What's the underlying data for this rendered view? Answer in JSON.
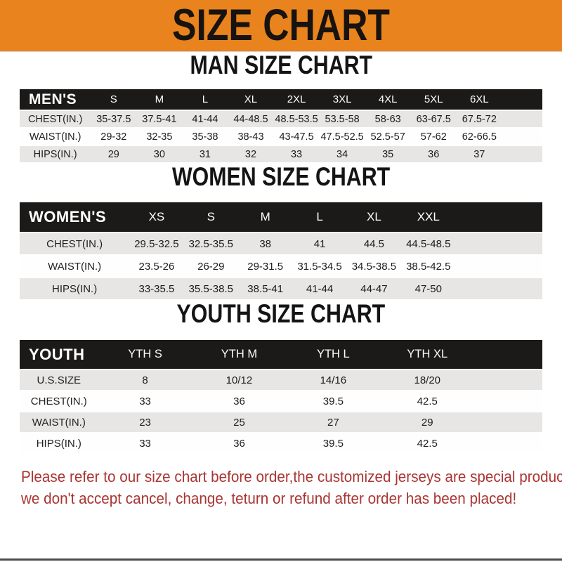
{
  "banner": {
    "title": "SIZE CHART"
  },
  "colors": {
    "banner_bg": "#e8831d",
    "bar_bg": "#1b1a18",
    "row_alt": "#e7e6e4",
    "note_red": "#a93532"
  },
  "men": {
    "heading": "MAN SIZE CHART",
    "table": {
      "group_label": "MEN'S",
      "columns": [
        "S",
        "M",
        "L",
        "XL",
        "2XL",
        "3XL",
        "4XL",
        "5XL",
        "6XL"
      ],
      "rows": [
        {
          "label": "CHEST(IN.)",
          "values": [
            "35-37.5",
            "37.5-41",
            "41-44",
            "44-48.5",
            "48.5-53.5",
            "53.5-58",
            "58-63",
            "63-67.5",
            "67.5-72"
          ]
        },
        {
          "label": "WAIST(IN.)",
          "values": [
            "29-32",
            "32-35",
            "35-38",
            "38-43",
            "43-47.5",
            "47.5-52.5",
            "52.5-57",
            "57-62",
            "62-66.5"
          ]
        },
        {
          "label": "HIPS(IN.)",
          "values": [
            "29",
            "30",
            "31",
            "32",
            "33",
            "34",
            "35",
            "36",
            "37"
          ]
        }
      ]
    }
  },
  "women": {
    "heading": "WOMEN SIZE CHART",
    "table": {
      "group_label": "WOMEN'S",
      "columns": [
        "XS",
        "S",
        "M",
        "L",
        "XL",
        "XXL"
      ],
      "rows": [
        {
          "label": "CHEST(IN.)",
          "values": [
            "29.5-32.5",
            "32.5-35.5",
            "38",
            "41",
            "44.5",
            "44.5-48.5"
          ]
        },
        {
          "label": "WAIST(IN.)",
          "values": [
            "23.5-26",
            "26-29",
            "29-31.5",
            "31.5-34.5",
            "34.5-38.5",
            "38.5-42.5"
          ]
        },
        {
          "label": "HIPS(IN.)",
          "values": [
            "33-35.5",
            "35.5-38.5",
            "38.5-41",
            "41-44",
            "44-47",
            "47-50"
          ]
        }
      ]
    }
  },
  "youth": {
    "heading": "YOUTH SIZE CHART",
    "table": {
      "group_label": "YOUTH",
      "columns": [
        "YTH S",
        "YTH M",
        "YTH L",
        "YTH XL"
      ],
      "rows": [
        {
          "label": "U.S.SIZE",
          "values": [
            "8",
            "10/12",
            "14/16",
            "18/20"
          ]
        },
        {
          "label": "CHEST(IN.)",
          "values": [
            "33",
            "36",
            "39.5",
            "42.5"
          ]
        },
        {
          "label": "WAIST(IN.)",
          "values": [
            "23",
            "25",
            "27",
            "29"
          ]
        },
        {
          "label": "HIPS(IN.)",
          "values": [
            "33",
            "36",
            "39.5",
            "42.5"
          ]
        }
      ]
    }
  },
  "note": {
    "line1": "Please refer to our size chart before order,the customized jerseys are special products,",
    "line2": "we don't accept cancel, change, teturn or refund after order has been placed!"
  }
}
